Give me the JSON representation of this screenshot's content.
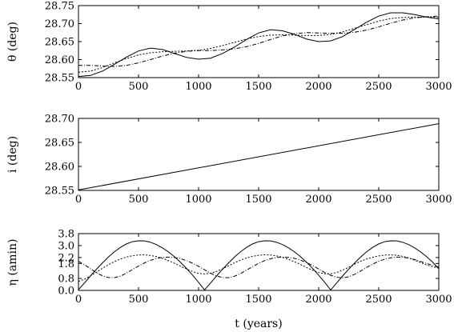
{
  "chart_data": [
    {
      "type": "line",
      "title": "",
      "xlabel": "",
      "ylabel": "θ  (deg)",
      "xlim": [
        0,
        3000
      ],
      "ylim": [
        28.55,
        28.75
      ],
      "xticks": [
        "0",
        "500",
        "1000",
        "1500",
        "2000",
        "2500",
        "3000"
      ],
      "yticks": [
        "28.55",
        "28.60",
        "28.65",
        "28.70",
        "28.75"
      ],
      "series": [
        {
          "style": "solid",
          "x": [
            0,
            100,
            200,
            300,
            400,
            500,
            600,
            700,
            800,
            900,
            1000,
            1100,
            1200,
            1300,
            1400,
            1500,
            1600,
            1700,
            1800,
            1900,
            2000,
            2100,
            2200,
            2300,
            2400,
            2500,
            2600,
            2700,
            2800,
            2900,
            3000
          ],
          "y": [
            28.553,
            28.556,
            28.568,
            28.587,
            28.607,
            28.624,
            28.632,
            28.628,
            28.617,
            28.606,
            28.601,
            28.604,
            28.617,
            28.635,
            28.656,
            28.674,
            28.683,
            28.68,
            28.67,
            28.657,
            28.65,
            28.652,
            28.664,
            28.684,
            28.704,
            28.721,
            28.73,
            28.73,
            28.725,
            28.718,
            28.713
          ]
        },
        {
          "style": "dotted",
          "x": [
            0,
            100,
            200,
            300,
            400,
            500,
            600,
            700,
            800,
            900,
            1000,
            1100,
            1200,
            1300,
            1400,
            1500,
            1600,
            1700,
            1800,
            1900,
            2000,
            2100,
            2200,
            2300,
            2400,
            2500,
            2600,
            2700,
            2800,
            2900,
            3000
          ],
          "y": [
            28.565,
            28.568,
            28.578,
            28.591,
            28.603,
            28.613,
            28.619,
            28.622,
            28.623,
            28.624,
            28.626,
            28.631,
            28.639,
            28.648,
            28.657,
            28.664,
            28.668,
            28.669,
            28.668,
            28.667,
            28.667,
            28.67,
            28.677,
            28.687,
            28.697,
            28.707,
            28.714,
            28.717,
            28.718,
            28.718,
            28.718
          ]
        },
        {
          "style": "dashed",
          "x": [
            0,
            100,
            200,
            300,
            400,
            500,
            600,
            700,
            800,
            900,
            1000,
            1100,
            1200,
            1300,
            1400,
            1500,
            1600,
            1700,
            1800,
            1900,
            2000,
            2100,
            2200,
            2300,
            2400,
            2500,
            2600,
            2700,
            2800,
            2900,
            3000
          ],
          "y": [
            28.584,
            28.584,
            28.582,
            28.581,
            28.584,
            28.591,
            28.6,
            28.61,
            28.618,
            28.623,
            28.625,
            28.625,
            28.627,
            28.63,
            28.636,
            28.645,
            28.656,
            28.666,
            28.672,
            28.675,
            28.674,
            28.673,
            28.673,
            28.676,
            28.682,
            28.691,
            28.701,
            28.71,
            28.716,
            28.719,
            28.721
          ]
        }
      ]
    },
    {
      "type": "line",
      "title": "",
      "xlabel": "",
      "ylabel": "i (deg)",
      "xlim": [
        0,
        3000
      ],
      "ylim": [
        28.55,
        28.7
      ],
      "xticks": [
        "0",
        "500",
        "1000",
        "1500",
        "2000",
        "2500",
        "3000"
      ],
      "yticks": [
        "28.55",
        "28.60",
        "28.65",
        "28.70"
      ],
      "series": [
        {
          "style": "solid",
          "x": [
            0,
            3000
          ],
          "y": [
            28.551,
            28.689
          ]
        }
      ]
    },
    {
      "type": "line",
      "title": "",
      "xlabel": "t (years)",
      "ylabel": "η (amin)",
      "xlim": [
        0,
        3000
      ],
      "ylim": [
        0.0,
        3.8
      ],
      "xticks": [
        "0",
        "500",
        "1000",
        "1500",
        "2000",
        "2500",
        "3000"
      ],
      "yticks": [
        "0.0",
        "0.8",
        "1.8",
        "2.2",
        "3.0",
        "3.8"
      ],
      "series": [
        {
          "style": "solid",
          "x": [
            0,
            50,
            100,
            150,
            200,
            250,
            300,
            350,
            400,
            450,
            500,
            550,
            600,
            650,
            700,
            750,
            800,
            850,
            900,
            950,
            1000,
            1050,
            1100,
            1150,
            1200,
            1250,
            1300,
            1350,
            1400,
            1450,
            1500,
            1550,
            1600,
            1650,
            1700,
            1750,
            1800,
            1850,
            1900,
            1950,
            2000,
            2050,
            2100,
            2150,
            2200,
            2250,
            2300,
            2350,
            2400,
            2450,
            2500,
            2550,
            2600,
            2650,
            2700,
            2750,
            2800,
            2850,
            2900,
            2950,
            3000
          ],
          "y": [
            0.05,
            0.5,
            0.97,
            1.42,
            1.84,
            2.24,
            2.59,
            2.88,
            3.11,
            3.26,
            3.32,
            3.31,
            3.22,
            3.06,
            2.84,
            2.57,
            2.25,
            1.88,
            1.47,
            1.02,
            0.54,
            0.03,
            0.5,
            0.97,
            1.42,
            1.84,
            2.24,
            2.59,
            2.88,
            3.11,
            3.26,
            3.32,
            3.31,
            3.22,
            3.06,
            2.84,
            2.57,
            2.25,
            1.88,
            1.47,
            1.02,
            0.54,
            0.03,
            0.5,
            0.97,
            1.42,
            1.84,
            2.24,
            2.59,
            2.88,
            3.11,
            3.26,
            3.32,
            3.31,
            3.22,
            3.06,
            2.84,
            2.57,
            2.25,
            1.88,
            1.45
          ]
        },
        {
          "style": "dotted",
          "x": [
            0,
            50,
            100,
            150,
            200,
            250,
            300,
            350,
            400,
            450,
            500,
            550,
            600,
            650,
            700,
            750,
            800,
            850,
            900,
            950,
            1000,
            1050,
            1100,
            1150,
            1200,
            1250,
            1300,
            1350,
            1400,
            1450,
            1500,
            1550,
            1600,
            1650,
            1700,
            1750,
            1800,
            1850,
            1900,
            1950,
            2000,
            2050,
            2100,
            2150,
            2200,
            2250,
            2300,
            2350,
            2400,
            2450,
            2500,
            2550,
            2600,
            2650,
            2700,
            2750,
            2800,
            2850,
            2900,
            2950,
            3000
          ],
          "y": [
            0.6,
            0.75,
            0.97,
            1.22,
            1.48,
            1.72,
            1.93,
            2.1,
            2.23,
            2.32,
            2.37,
            2.38,
            2.34,
            2.26,
            2.14,
            1.99,
            1.81,
            1.62,
            1.43,
            1.26,
            1.14,
            1.1,
            1.15,
            1.27,
            1.45,
            1.65,
            1.85,
            2.03,
            2.17,
            2.28,
            2.35,
            2.38,
            2.37,
            2.31,
            2.21,
            2.08,
            1.91,
            1.73,
            1.53,
            1.35,
            1.2,
            1.11,
            1.11,
            1.2,
            1.36,
            1.55,
            1.76,
            1.95,
            2.1,
            2.22,
            2.31,
            2.36,
            2.38,
            2.35,
            2.28,
            2.17,
            2.02,
            1.86,
            1.7,
            1.58,
            1.5
          ]
        },
        {
          "style": "dashed",
          "x": [
            0,
            50,
            100,
            150,
            200,
            250,
            300,
            350,
            400,
            450,
            500,
            550,
            600,
            650,
            700,
            750,
            800,
            850,
            900,
            950,
            1000,
            1050,
            1100,
            1150,
            1200,
            1250,
            1300,
            1350,
            1400,
            1450,
            1500,
            1550,
            1600,
            1650,
            1700,
            1750,
            1800,
            1850,
            1900,
            1950,
            2000,
            2050,
            2100,
            2150,
            2200,
            2250,
            2300,
            2350,
            2400,
            2450,
            2500,
            2550,
            2600,
            2650,
            2700,
            2750,
            2800,
            2850,
            2900,
            2950,
            3000
          ],
          "y": [
            1.95,
            1.72,
            1.45,
            1.18,
            0.98,
            0.86,
            0.85,
            0.96,
            1.16,
            1.4,
            1.63,
            1.84,
            2.01,
            2.14,
            2.21,
            2.23,
            2.2,
            2.12,
            1.99,
            1.82,
            1.61,
            1.38,
            1.15,
            0.97,
            0.86,
            0.85,
            0.95,
            1.13,
            1.36,
            1.59,
            1.81,
            1.99,
            2.12,
            2.2,
            2.23,
            2.21,
            2.14,
            2.02,
            1.86,
            1.66,
            1.43,
            1.2,
            1.01,
            0.88,
            0.84,
            0.91,
            1.08,
            1.3,
            1.54,
            1.76,
            1.95,
            2.09,
            2.18,
            2.23,
            2.22,
            2.16,
            2.06,
            1.93,
            1.8,
            1.67,
            1.55
          ]
        }
      ]
    }
  ]
}
